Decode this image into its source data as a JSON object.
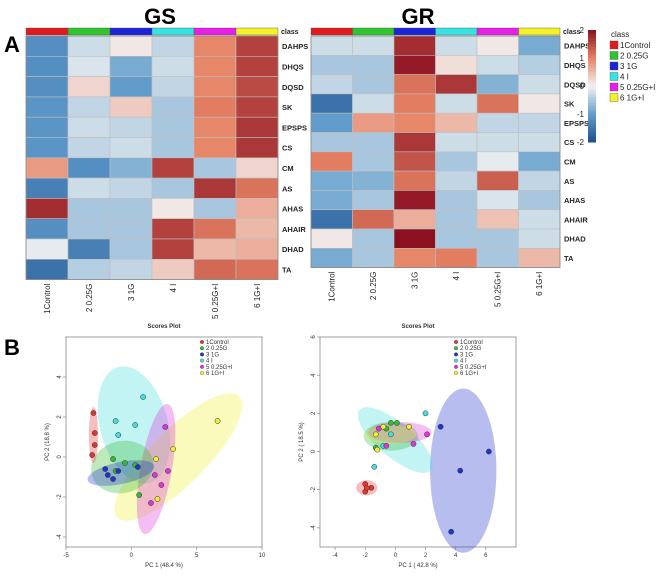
{
  "panel_labels": {
    "a": "A",
    "b": "B"
  },
  "chart_data": [
    {
      "type": "heatmap",
      "title": "GS",
      "class_label": "class",
      "rows": [
        "DAHPS",
        "DHQS",
        "DQSD",
        "SK",
        "EPSPS",
        "CS",
        "CM",
        "AS",
        "AHAS",
        "AHAIR",
        "DHAD",
        "TA"
      ],
      "columns": [
        "1Control",
        "2 0.25G",
        "3 1G",
        "4 I",
        "5 0.25G+I",
        "6 1G+I"
      ],
      "values": [
        [
          -1.4,
          -0.3,
          0.1,
          -0.4,
          1.1,
          1.8
        ],
        [
          -1.4,
          -0.2,
          -1.0,
          -0.3,
          1.1,
          1.8
        ],
        [
          -1.4,
          0.3,
          -1.2,
          -0.4,
          1.1,
          1.7
        ],
        [
          -1.3,
          -0.4,
          0.4,
          -0.6,
          1.2,
          1.8
        ],
        [
          -1.3,
          -0.3,
          -0.4,
          -0.6,
          1.1,
          1.9
        ],
        [
          -1.3,
          -0.4,
          -0.3,
          -0.6,
          1.1,
          1.9
        ],
        [
          0.9,
          -1.4,
          -0.9,
          1.8,
          -0.6,
          0.3
        ],
        [
          -1.6,
          -0.3,
          -0.4,
          -0.6,
          1.9,
          1.3
        ],
        [
          2.0,
          -0.6,
          -0.6,
          0.1,
          -0.6,
          0.7
        ],
        [
          -1.4,
          -0.6,
          -0.6,
          1.8,
          1.3,
          0.6
        ],
        [
          -0.1,
          -1.6,
          -0.6,
          1.8,
          0.6,
          0.7
        ],
        [
          -1.8,
          -0.5,
          -0.4,
          0.4,
          1.4,
          1.3
        ]
      ]
    },
    {
      "type": "heatmap",
      "title": "GR",
      "class_label": "class",
      "rows": [
        "DAHPS",
        "DHQS",
        "DQSD",
        "SK",
        "EPSPS",
        "CS",
        "CM",
        "AS",
        "AHAS",
        "AHAIR",
        "DHAD",
        "TA"
      ],
      "columns": [
        "1Control",
        "2 0.25G",
        "3 1G",
        "4 I",
        "5 0.25G+I",
        "6 1G+I"
      ],
      "values": [
        [
          -0.3,
          -0.3,
          2.0,
          -0.3,
          0.1,
          -1.0
        ],
        [
          -0.6,
          -0.6,
          2.2,
          0.2,
          -0.3,
          -0.5
        ],
        [
          -0.4,
          -0.6,
          1.3,
          1.9,
          -0.9,
          -0.3
        ],
        [
          -1.8,
          -0.3,
          1.2,
          -0.3,
          1.3,
          0.1
        ],
        [
          -1.2,
          0.9,
          1.1,
          0.6,
          -0.4,
          -0.4
        ],
        [
          -0.6,
          -0.6,
          1.9,
          -0.3,
          -0.3,
          -0.3
        ],
        [
          1.2,
          -0.6,
          1.6,
          -0.6,
          -0.1,
          -1.0
        ],
        [
          -1.0,
          -0.9,
          1.3,
          -0.4,
          1.5,
          -0.4
        ],
        [
          -1.0,
          -0.6,
          2.2,
          -0.6,
          -0.2,
          -0.6
        ],
        [
          -1.8,
          1.4,
          0.7,
          -0.6,
          0.5,
          -0.3
        ],
        [
          0.1,
          -0.6,
          2.3,
          -0.6,
          -0.6,
          -0.3
        ],
        [
          -1.0,
          -0.6,
          1.1,
          1.2,
          -0.6,
          0.6
        ]
      ]
    },
    {
      "type": "scatter",
      "title": "Scores Plot",
      "xlabel": "PC 1 (48.4 %)",
      "ylabel": "PC 2 (18.8 %)",
      "xlim": [
        -5,
        10
      ],
      "ylim": [
        -4.5,
        6
      ],
      "xticks": [
        -5,
        0,
        5,
        10
      ],
      "yticks": [
        -4,
        -2,
        0,
        2,
        4
      ],
      "series": [
        {
          "name": "1Control",
          "color": "#e3342f",
          "points": [
            [
              -2.9,
              2.2
            ],
            [
              -2.8,
              1.2
            ],
            [
              -3.0,
              0.1
            ],
            [
              -2.8,
              0.6
            ]
          ]
        },
        {
          "name": "2 0.25G",
          "color": "#33bb33",
          "points": [
            [
              -1.4,
              -0.1
            ],
            [
              -0.5,
              -0.3
            ],
            [
              0.3,
              -0.4
            ],
            [
              0.6,
              -1.9
            ],
            [
              -1.2,
              -0.7
            ]
          ]
        },
        {
          "name": "3 1G",
          "color": "#2233cc",
          "points": [
            [
              -2.0,
              -0.6
            ],
            [
              -1.4,
              -1.1
            ],
            [
              -1.8,
              -0.9
            ],
            [
              -1.0,
              -0.7
            ],
            [
              0.5,
              -0.5
            ]
          ]
        },
        {
          "name": "4 I",
          "color": "#44dddd",
          "points": [
            [
              0.9,
              3.0
            ],
            [
              -1.2,
              1.8
            ],
            [
              -1.0,
              1.1
            ],
            [
              0.3,
              1.6
            ]
          ]
        },
        {
          "name": "5 0.25G+I",
          "color": "#dd33dd",
          "points": [
            [
              2.6,
              1.5
            ],
            [
              1.8,
              -0.9
            ],
            [
              2.3,
              -1.4
            ],
            [
              2.8,
              -0.7
            ],
            [
              1.5,
              -2.3
            ]
          ]
        },
        {
          "name": "6 1G+I",
          "color": "#eeee33",
          "points": [
            [
              6.6,
              1.8
            ],
            [
              3.2,
              0.4
            ],
            [
              1.9,
              -0.1
            ],
            [
              2.0,
              -2.1
            ]
          ]
        }
      ]
    },
    {
      "type": "scatter",
      "title": "Scores Plot",
      "xlabel": "PC 1 ( 42.8 %)",
      "ylabel": "PC 2 ( 18.5 %)",
      "xlim": [
        -5,
        8
      ],
      "ylim": [
        -5,
        6
      ],
      "xticks": [
        -4,
        -2,
        0,
        2,
        4,
        6
      ],
      "yticks": [
        -4,
        -2,
        0,
        2,
        4,
        6
      ],
      "series": [
        {
          "name": "1Control",
          "color": "#e3342f",
          "points": [
            [
              -2.0,
              -1.7
            ],
            [
              -1.6,
              -1.9
            ],
            [
              -2.0,
              -2.1
            ],
            [
              -1.9,
              -1.9
            ]
          ]
        },
        {
          "name": "2 0.25G",
          "color": "#33bb33",
          "points": [
            [
              -0.6,
              1.2
            ],
            [
              0.1,
              1.5
            ],
            [
              -1.3,
              0.2
            ],
            [
              -0.3,
              1.5
            ]
          ]
        },
        {
          "name": "3 1G",
          "color": "#2233cc",
          "points": [
            [
              3.0,
              1.3
            ],
            [
              4.3,
              -1.0
            ],
            [
              6.2,
              0.0
            ],
            [
              3.7,
              -4.2
            ]
          ]
        },
        {
          "name": "4 I",
          "color": "#44dddd",
          "points": [
            [
              -1.4,
              -0.8
            ],
            [
              2.0,
              2.0
            ],
            [
              -0.3,
              0.9
            ],
            [
              -0.8,
              0.3
            ]
          ]
        },
        {
          "name": "5 0.25G+I",
          "color": "#dd33dd",
          "points": [
            [
              1.2,
              0.4
            ],
            [
              -0.6,
              0.3
            ],
            [
              -1.1,
              1.2
            ],
            [
              2.1,
              0.9
            ]
          ]
        },
        {
          "name": "6 1G+I",
          "color": "#eeee33",
          "points": [
            [
              -1.3,
              0.9
            ],
            [
              -0.8,
              1.3
            ],
            [
              0.9,
              1.3
            ],
            [
              -1.2,
              0.1
            ]
          ]
        }
      ]
    }
  ],
  "legend_heatmap": {
    "title": "class",
    "items": [
      "1Control",
      "2 0.25G",
      "3 1G",
      "4 I",
      "5 0.25G+I",
      "6 1G+I"
    ],
    "colors": [
      "#e31a1c",
      "#2ec52e",
      "#1c24d9",
      "#36e3e3",
      "#e81ee8",
      "#f2f224"
    ],
    "colorbar_ticks": [
      "2",
      "1",
      "0",
      "-1",
      "-2"
    ]
  },
  "legend_scatter": {
    "items": [
      "1Control",
      "2 0.25G",
      "3 1G",
      "4 I",
      "5 0.25G+I",
      "6 1G+I"
    ]
  },
  "colors": {
    "neg": "#1d4e8f",
    "zero": "#f2f2f2",
    "pos": "#8b1020"
  }
}
